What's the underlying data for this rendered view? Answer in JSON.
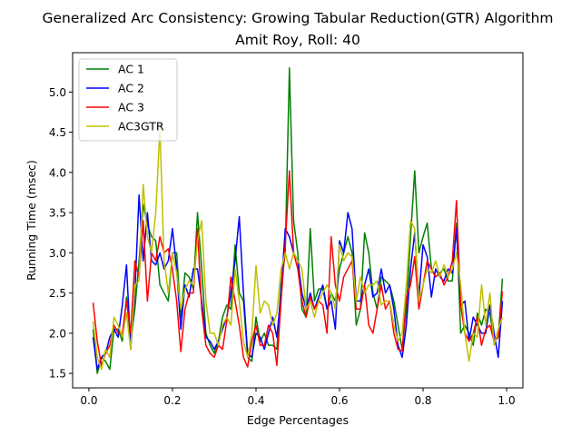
{
  "chart_data": {
    "type": "line",
    "title": "Generalized Arc Consistency: Growing Tabular Reduction(GTR) Algorithm",
    "subtitle": "Amit Roy, Roll: 40",
    "xlabel": "Edge Percentages",
    "ylabel": "Running Time (msec)",
    "xlim": [
      -0.039,
      1.039
    ],
    "ylim": [
      1.32,
      5.49
    ],
    "xticks": [
      0.0,
      0.2,
      0.4,
      0.6,
      0.8,
      1.0
    ],
    "xtick_labels": [
      "0.0",
      "0.2",
      "0.4",
      "0.6",
      "0.8",
      "1.0"
    ],
    "yticks": [
      1.5,
      2.0,
      2.5,
      3.0,
      3.5,
      4.0,
      4.5,
      5.0
    ],
    "ytick_labels": [
      "1.5",
      "2.0",
      "2.5",
      "3.0",
      "3.5",
      "4.0",
      "4.5",
      "5.0"
    ],
    "legend_position": "top-left",
    "grid": false,
    "x": [
      0.01,
      0.02,
      0.03,
      0.04,
      0.05,
      0.06,
      0.07,
      0.08,
      0.09,
      0.1,
      0.11,
      0.12,
      0.13,
      0.14,
      0.15,
      0.16,
      0.17,
      0.18,
      0.19,
      0.2,
      0.21,
      0.22,
      0.23,
      0.24,
      0.25,
      0.26,
      0.27,
      0.28,
      0.29,
      0.3,
      0.31,
      0.32,
      0.33,
      0.34,
      0.35,
      0.36,
      0.37,
      0.38,
      0.39,
      0.4,
      0.41,
      0.42,
      0.43,
      0.44,
      0.45,
      0.46,
      0.47,
      0.48,
      0.49,
      0.5,
      0.51,
      0.52,
      0.53,
      0.54,
      0.55,
      0.56,
      0.57,
      0.58,
      0.59,
      0.6,
      0.61,
      0.62,
      0.63,
      0.64,
      0.65,
      0.66,
      0.67,
      0.68,
      0.69,
      0.7,
      0.71,
      0.72,
      0.73,
      0.74,
      0.75,
      0.76,
      0.77,
      0.78,
      0.79,
      0.8,
      0.81,
      0.82,
      0.83,
      0.84,
      0.85,
      0.86,
      0.87,
      0.88,
      0.89,
      0.9,
      0.91,
      0.92,
      0.93,
      0.94,
      0.95,
      0.96,
      0.97,
      0.98,
      0.99
    ],
    "series": [
      {
        "name": "AC 1",
        "color": "#008000",
        "values": [
          2.05,
          1.5,
          1.7,
          1.65,
          1.55,
          2.05,
          2.05,
          1.9,
          2.45,
          1.9,
          2.3,
          2.9,
          3.6,
          3.35,
          3.2,
          3.15,
          2.6,
          2.5,
          2.4,
          3.0,
          3.0,
          2.2,
          2.75,
          2.7,
          2.55,
          3.5,
          2.8,
          2.0,
          1.85,
          1.75,
          1.9,
          2.2,
          2.35,
          2.3,
          3.1,
          2.5,
          2.4,
          1.7,
          1.65,
          2.2,
          1.9,
          2.0,
          1.85,
          1.85,
          1.8,
          2.6,
          3.0,
          5.3,
          3.4,
          3.0,
          2.3,
          2.2,
          3.3,
          2.4,
          2.55,
          2.55,
          2.3,
          2.5,
          2.4,
          2.8,
          3.0,
          3.2,
          3.0,
          2.1,
          2.3,
          3.25,
          3.0,
          2.5,
          2.3,
          2.7,
          2.65,
          2.6,
          2.4,
          2.1,
          1.8,
          2.3,
          3.2,
          4.02,
          3.0,
          3.2,
          3.37,
          2.8,
          2.7,
          2.75,
          2.8,
          2.65,
          2.65,
          3.37,
          2.0,
          2.1,
          2.0,
          1.85,
          2.25,
          2.1,
          2.3,
          2.25,
          1.9,
          1.95,
          2.68
        ]
      },
      {
        "name": "AC 2",
        "color": "#0000ff",
        "values": [
          1.95,
          1.55,
          1.7,
          1.75,
          1.95,
          2.05,
          1.95,
          2.35,
          2.85,
          1.8,
          2.5,
          3.72,
          2.9,
          3.5,
          2.9,
          2.85,
          3.0,
          2.8,
          2.9,
          3.3,
          2.8,
          2.05,
          2.6,
          2.45,
          2.8,
          2.8,
          2.4,
          1.95,
          1.9,
          1.8,
          1.9,
          2.05,
          2.2,
          2.5,
          2.9,
          3.45,
          2.5,
          1.75,
          1.7,
          2.0,
          1.95,
          1.8,
          2.0,
          2.2,
          1.95,
          2.5,
          3.3,
          3.2,
          3.0,
          2.9,
          2.5,
          2.3,
          2.5,
          2.3,
          2.45,
          2.6,
          2.3,
          2.4,
          2.05,
          3.15,
          3.0,
          3.5,
          3.3,
          2.4,
          2.4,
          2.6,
          2.8,
          2.45,
          2.5,
          2.8,
          2.5,
          2.6,
          2.3,
          1.85,
          1.7,
          2.1,
          2.8,
          3.25,
          2.45,
          3.1,
          2.95,
          2.45,
          2.8,
          2.7,
          2.65,
          2.8,
          2.75,
          3.3,
          2.35,
          2.4,
          1.9,
          2.2,
          2.1,
          2.0,
          2.0,
          2.35,
          2.0,
          1.7,
          2.4
        ]
      },
      {
        "name": "AC 3",
        "color": "#ff0000",
        "values": [
          2.38,
          1.9,
          1.6,
          1.75,
          1.85,
          2.1,
          2.0,
          2.0,
          2.4,
          2.0,
          2.9,
          2.7,
          3.4,
          2.4,
          3.0,
          2.9,
          3.2,
          3.0,
          3.05,
          2.8,
          2.4,
          1.77,
          2.3,
          2.5,
          2.5,
          3.3,
          2.3,
          1.85,
          1.75,
          1.7,
          1.85,
          1.8,
          2.15,
          2.7,
          2.4,
          2.1,
          1.7,
          1.58,
          1.9,
          2.1,
          1.85,
          1.85,
          2.1,
          2.0,
          1.6,
          2.4,
          3.1,
          4.02,
          3.0,
          2.8,
          2.4,
          2.2,
          2.45,
          2.3,
          2.4,
          2.35,
          2.0,
          3.2,
          2.6,
          2.4,
          2.7,
          2.8,
          2.9,
          2.3,
          2.3,
          2.6,
          2.1,
          2.0,
          2.3,
          2.6,
          2.3,
          2.4,
          2.0,
          1.8,
          1.78,
          2.45,
          2.6,
          2.95,
          2.3,
          2.6,
          2.9,
          2.8,
          2.7,
          2.75,
          2.6,
          2.7,
          2.9,
          3.65,
          2.35,
          2.0,
          1.9,
          2.0,
          2.2,
          1.85,
          2.05,
          2.1,
          1.9,
          1.95,
          2.52
        ]
      },
      {
        "name": "AC3GTR",
        "color": "#bfbf00",
        "values": [
          2.15,
          1.7,
          1.55,
          1.8,
          1.7,
          2.2,
          2.1,
          1.95,
          2.25,
          1.8,
          2.6,
          2.65,
          3.85,
          3.2,
          3.0,
          3.5,
          4.55,
          2.9,
          2.5,
          3.0,
          2.75,
          2.3,
          2.55,
          2.65,
          2.6,
          3.15,
          3.4,
          2.4,
          2.0,
          2.0,
          1.85,
          2.1,
          2.2,
          2.1,
          2.8,
          2.4,
          1.9,
          1.7,
          2.0,
          2.84,
          2.25,
          2.4,
          2.35,
          2.1,
          2.25,
          2.8,
          3.0,
          2.8,
          3.0,
          2.9,
          2.8,
          2.3,
          2.4,
          2.2,
          2.4,
          2.5,
          2.6,
          2.5,
          2.3,
          3.1,
          2.9,
          3.0,
          2.95,
          2.4,
          2.7,
          2.5,
          2.6,
          2.6,
          2.65,
          2.35,
          2.4,
          2.4,
          2.1,
          1.9,
          2.0,
          2.6,
          3.4,
          3.3,
          2.4,
          2.6,
          2.8,
          2.75,
          2.9,
          2.7,
          2.85,
          2.7,
          2.8,
          3.0,
          2.6,
          2.0,
          1.65,
          2.0,
          1.95,
          2.6,
          2.1,
          2.5,
          1.85,
          2.05,
          2.2
        ]
      }
    ]
  }
}
